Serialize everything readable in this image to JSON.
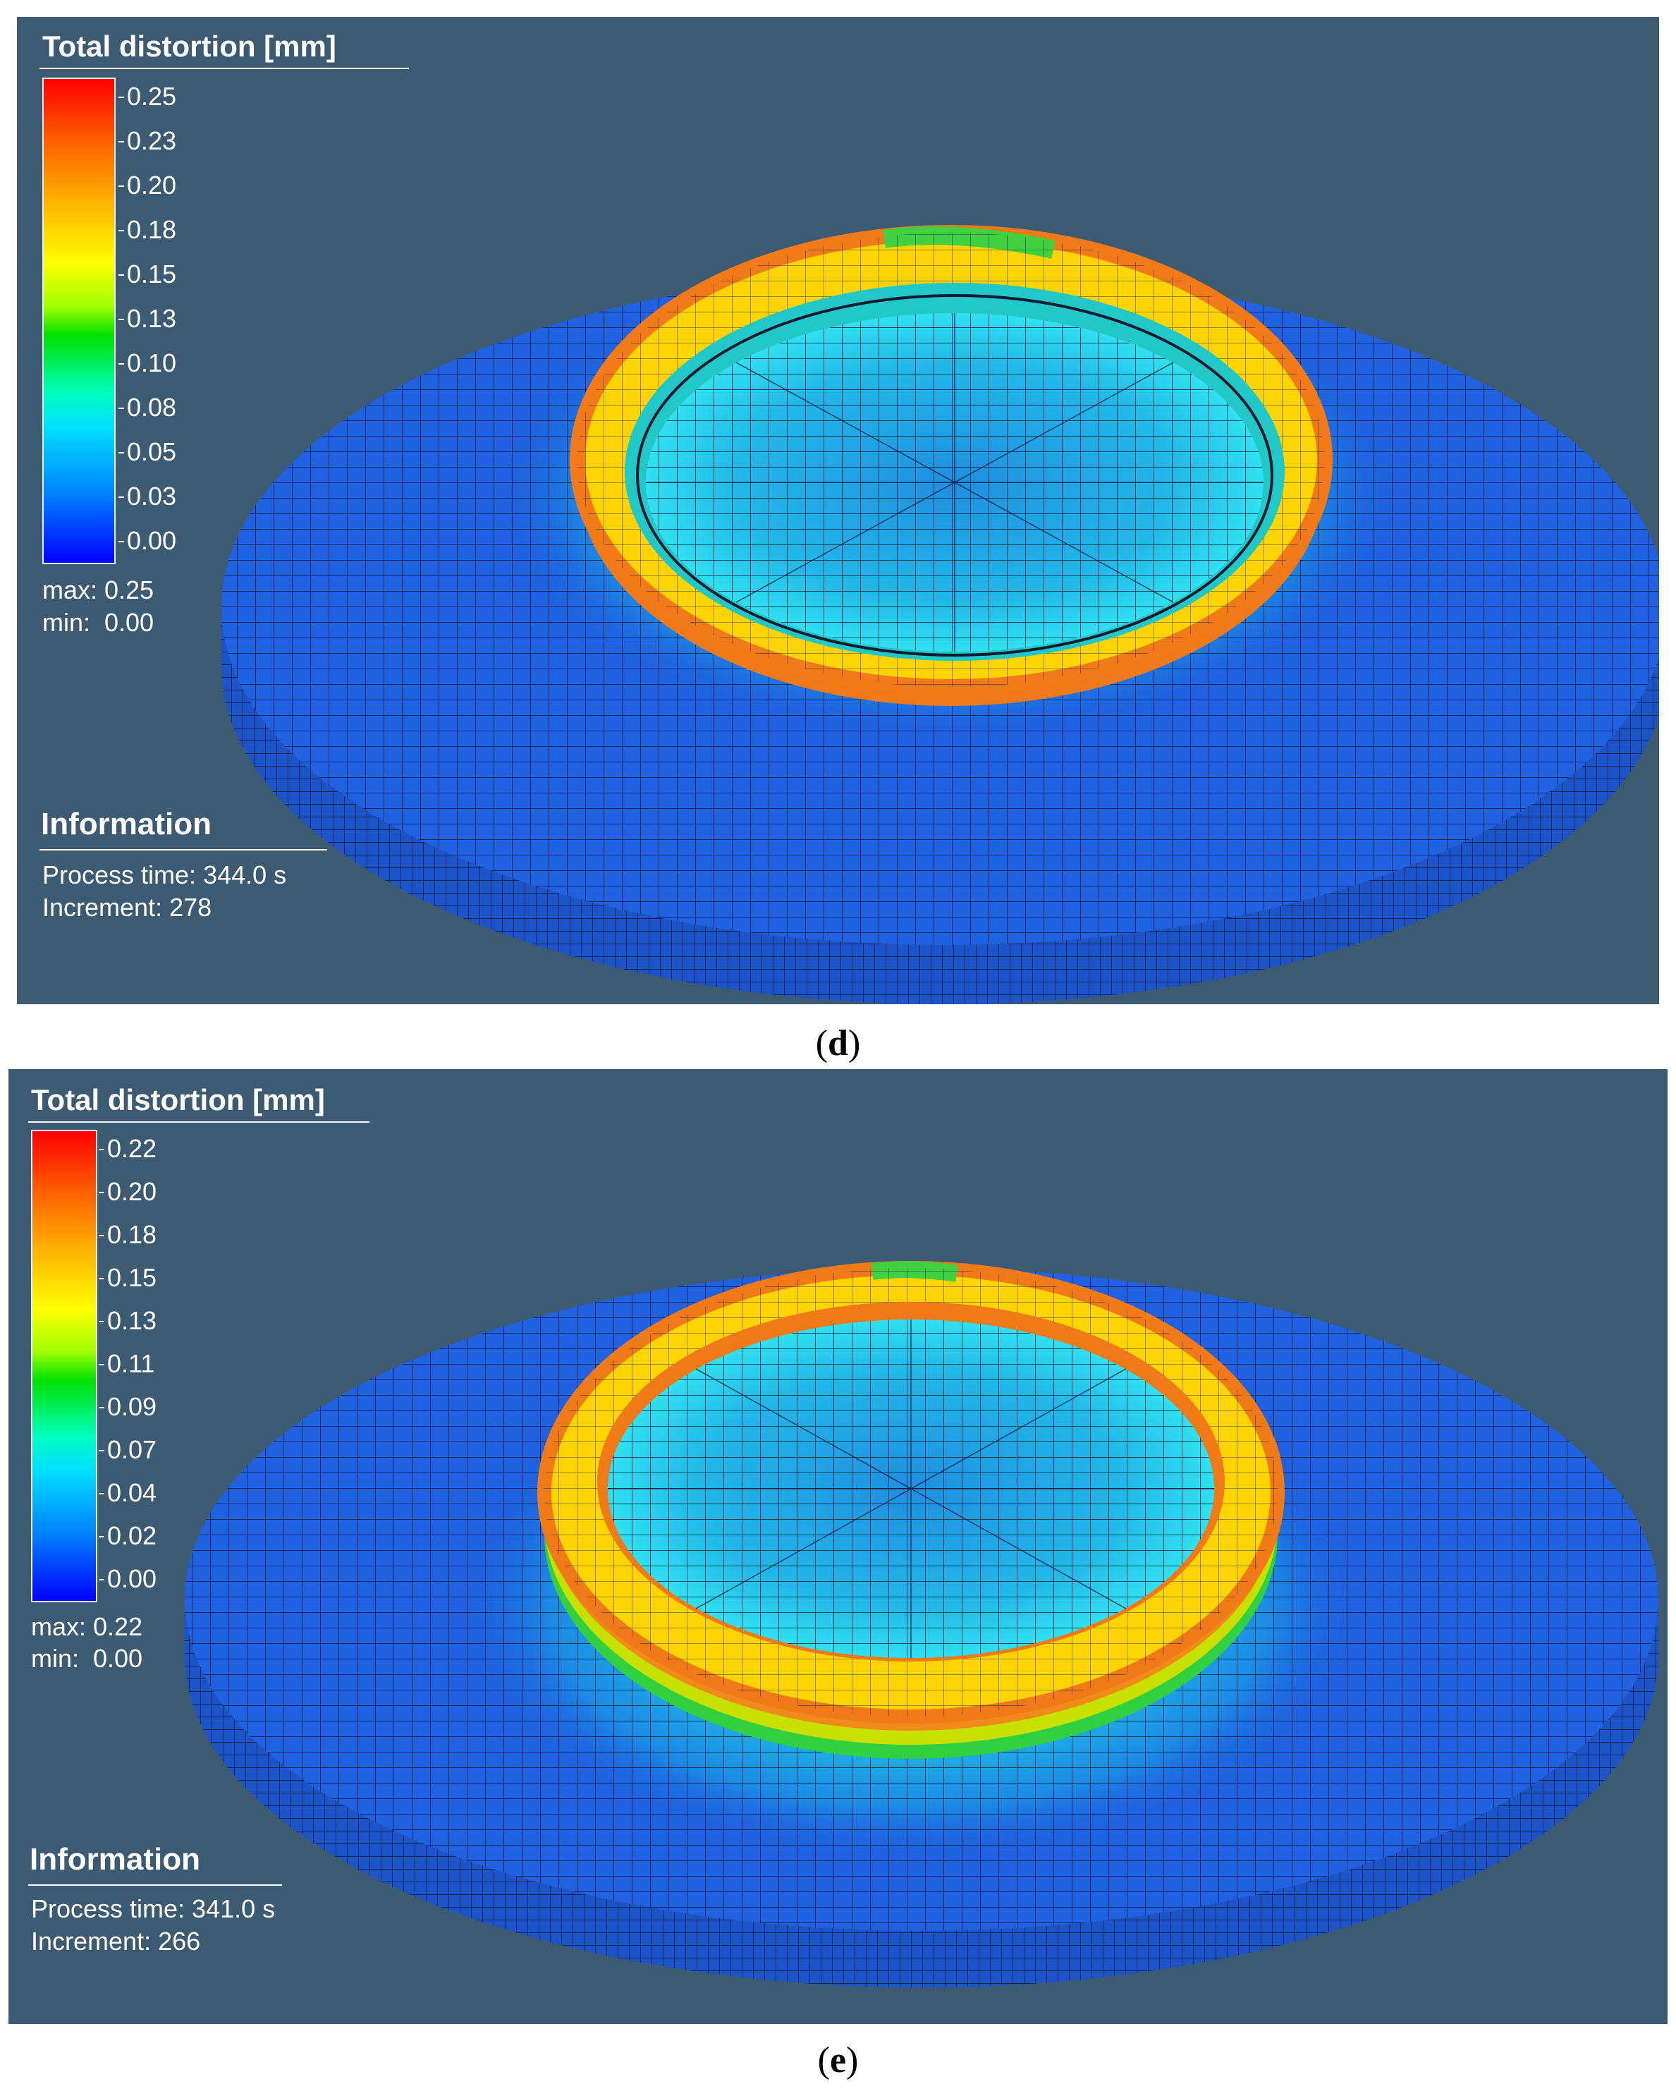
{
  "colors": {
    "background": "#3d5a73",
    "plate_base": "#1f61e0",
    "plate_side": "#1d54c8",
    "mesh_line": "#0c1a3a"
  },
  "panels": [
    {
      "legend_title": "Total distortion [mm]",
      "ticks": [
        "0.25",
        "0.23",
        "0.20",
        "0.18",
        "0.15",
        "0.13",
        "0.10",
        "0.08",
        "0.05",
        "0.03",
        "0.00"
      ],
      "max": "max: 0.25",
      "min": "min:  0.00",
      "info_title": "Information",
      "process_time": "Process time: 344.0 s",
      "increment": "Increment: 278",
      "caption_open": "(",
      "caption_letter": "d",
      "caption_close": ")"
    },
    {
      "legend_title": "Total distortion [mm]",
      "ticks": [
        "0.22",
        "0.20",
        "0.18",
        "0.15",
        "0.13",
        "0.11",
        "0.09",
        "0.07",
        "0.04",
        "0.02",
        "0.00"
      ],
      "max": "max: 0.22",
      "min": "min:  0.00",
      "info_title": "Information",
      "process_time": "Process time: 341.0 s",
      "increment": "Increment: 266",
      "caption_open": "(",
      "caption_letter": "e",
      "caption_close": ")"
    }
  ]
}
